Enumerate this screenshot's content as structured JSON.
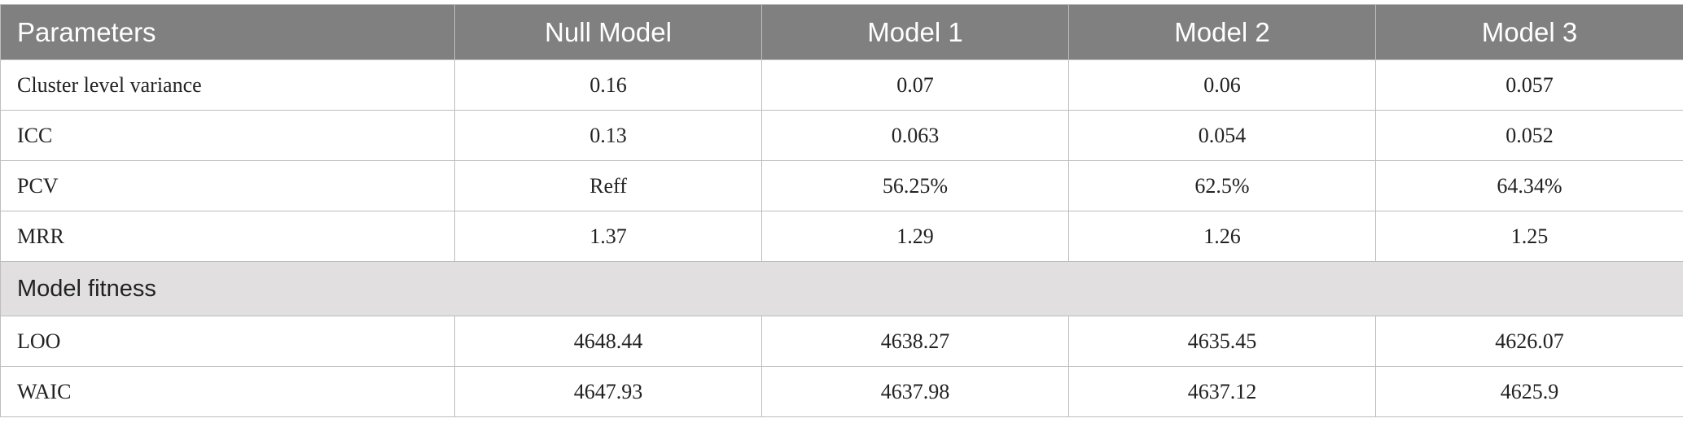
{
  "table": {
    "header": [
      "Parameters",
      "Null Model",
      "Model 1",
      "Model 2",
      "Model 3"
    ],
    "rows": [
      [
        "Cluster level variance",
        "0.16",
        "0.07",
        "0.06",
        "0.057"
      ],
      [
        "ICC",
        "0.13",
        "0.063",
        "0.054",
        "0.052"
      ],
      [
        "PCV",
        "Reff",
        "56.25%",
        "62.5%",
        "64.34%"
      ],
      [
        "MRR",
        "1.37",
        "1.29",
        "1.26",
        "1.25"
      ]
    ],
    "section": "Model fitness",
    "section_rows": [
      [
        "LOO",
        "4648.44",
        "4638.27",
        "4635.45",
        "4626.07"
      ],
      [
        "WAIC",
        "4647.93",
        "4637.98",
        "4637.12",
        "4625.9"
      ]
    ]
  }
}
